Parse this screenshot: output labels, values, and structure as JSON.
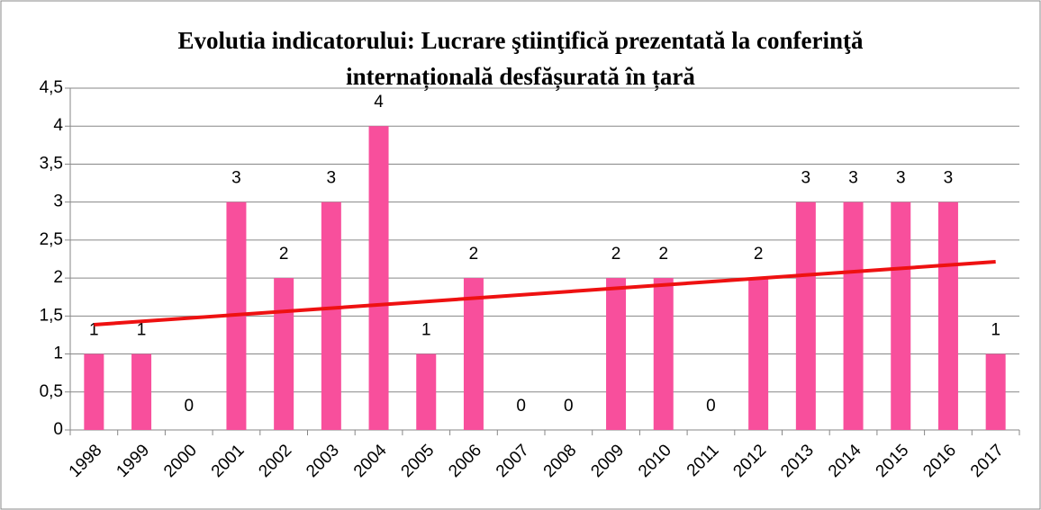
{
  "chart_data": {
    "type": "bar",
    "title": "Evolutia indicatorului: Lucrare ştiinţifică prezentată la conferinţă",
    "subtitle": "internațională desfășurată în țară",
    "categories": [
      "1998",
      "1999",
      "2000",
      "2001",
      "2002",
      "2003",
      "2004",
      "2005",
      "2006",
      "2007",
      "2008",
      "2009",
      "2010",
      "2011",
      "2012",
      "2013",
      "2014",
      "2015",
      "2016",
      "2017"
    ],
    "values": [
      1,
      1,
      0,
      3,
      2,
      3,
      4,
      1,
      2,
      0,
      0,
      2,
      2,
      0,
      2,
      3,
      3,
      3,
      3,
      1
    ],
    "color": "#f84f9c",
    "trendline": "linear",
    "trendline_color": "#ee1111",
    "ylim": [
      0,
      4.5
    ],
    "yticks": [
      0,
      {
        "value": 0.5,
        "label": "0,5"
      },
      1,
      {
        "value": 1.5,
        "label": "1,5"
      },
      2,
      {
        "value": 2.5,
        "label": "2,5"
      },
      3,
      {
        "value": 3.5,
        "label": "3,5"
      },
      4,
      {
        "value": 4.5,
        "label": "4,5"
      }
    ],
    "grid": true
  }
}
